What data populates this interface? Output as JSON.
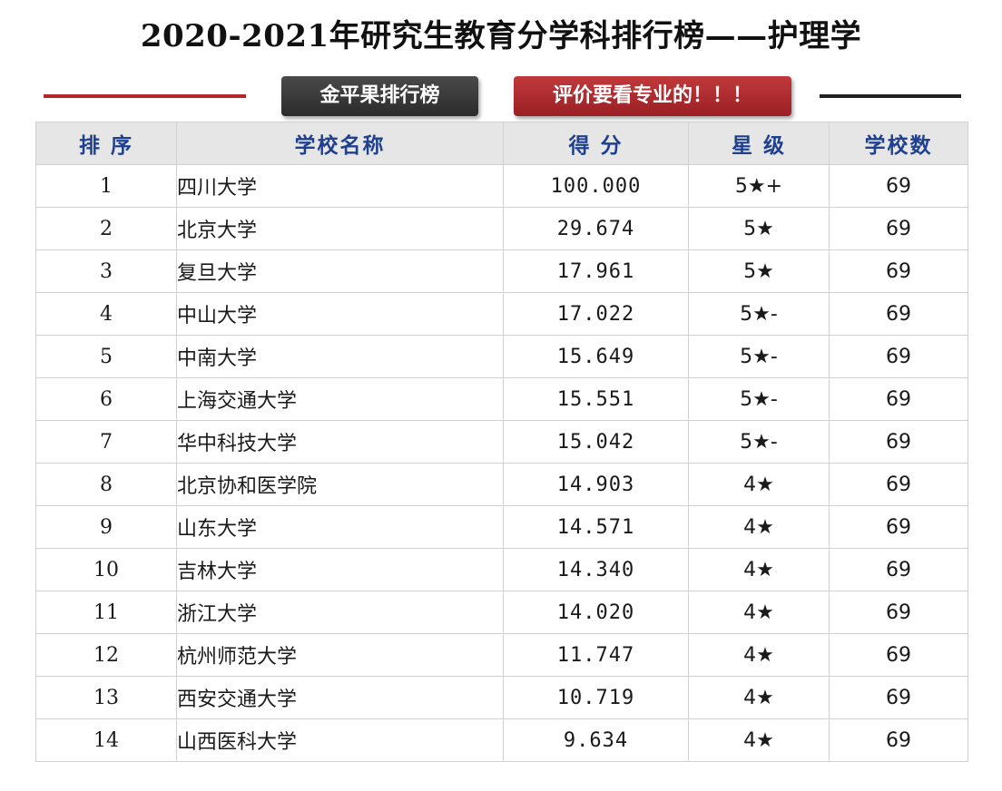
{
  "title": "2020-2021年研究生教育分学科排行榜——护理学",
  "badges": {
    "left": "金平果排行榜",
    "right": "评价要看专业的！！！"
  },
  "colors": {
    "accent_red": "#b3262a",
    "header_text": "#1f3f8f",
    "header_bg": "#e6e6e6"
  },
  "table": {
    "headers": [
      "排 序",
      "学校名称",
      "得 分",
      "星 级",
      "学校数"
    ],
    "rows": [
      {
        "rank": "1",
        "name": "四川大学",
        "score": "100.000",
        "stars": "5★+",
        "count": "69"
      },
      {
        "rank": "2",
        "name": "北京大学",
        "score": "29.674",
        "stars": "5★",
        "count": "69"
      },
      {
        "rank": "3",
        "name": "复旦大学",
        "score": "17.961",
        "stars": "5★",
        "count": "69"
      },
      {
        "rank": "4",
        "name": "中山大学",
        "score": "17.022",
        "stars": "5★-",
        "count": "69"
      },
      {
        "rank": "5",
        "name": "中南大学",
        "score": "15.649",
        "stars": "5★-",
        "count": "69"
      },
      {
        "rank": "6",
        "name": "上海交通大学",
        "score": "15.551",
        "stars": "5★-",
        "count": "69"
      },
      {
        "rank": "7",
        "name": "华中科技大学",
        "score": "15.042",
        "stars": "5★-",
        "count": "69"
      },
      {
        "rank": "8",
        "name": "北京协和医学院",
        "score": "14.903",
        "stars": "4★",
        "count": "69"
      },
      {
        "rank": "9",
        "name": "山东大学",
        "score": "14.571",
        "stars": "4★",
        "count": "69"
      },
      {
        "rank": "10",
        "name": "吉林大学",
        "score": "14.340",
        "stars": "4★",
        "count": "69"
      },
      {
        "rank": "11",
        "name": "浙江大学",
        "score": "14.020",
        "stars": "4★",
        "count": "69"
      },
      {
        "rank": "12",
        "name": "杭州师范大学",
        "score": "11.747",
        "stars": "4★",
        "count": "69"
      },
      {
        "rank": "13",
        "name": "西安交通大学",
        "score": "10.719",
        "stars": "4★",
        "count": "69"
      },
      {
        "rank": "14",
        "name": "山西医科大学",
        "score": "9.634",
        "stars": "4★",
        "count": "69"
      }
    ]
  }
}
